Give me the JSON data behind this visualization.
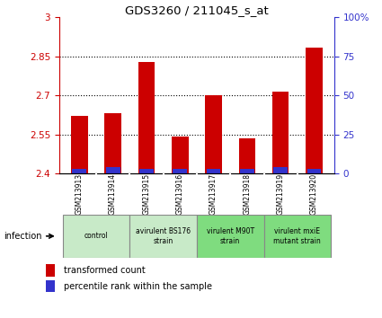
{
  "title": "GDS3260 / 211045_s_at",
  "samples": [
    "GSM213913",
    "GSM213914",
    "GSM213915",
    "GSM213916",
    "GSM213917",
    "GSM213918",
    "GSM213919",
    "GSM213920"
  ],
  "transformed_count": [
    2.62,
    2.63,
    2.83,
    2.54,
    2.7,
    2.535,
    2.715,
    2.885
  ],
  "percentile_rank": [
    3,
    4,
    3,
    3,
    3,
    3,
    4,
    3
  ],
  "ylim_left": [
    2.4,
    3.0
  ],
  "ylim_right": [
    0,
    100
  ],
  "yticks_left": [
    2.4,
    2.55,
    2.7,
    2.85,
    3.0
  ],
  "yticks_right": [
    0,
    25,
    50,
    75,
    100
  ],
  "ytick_labels_left": [
    "2.4",
    "2.55",
    "2.7",
    "2.85",
    "3"
  ],
  "ytick_labels_right": [
    "0",
    "25",
    "50",
    "75",
    "100%"
  ],
  "bar_color_red": "#cc0000",
  "bar_color_blue": "#3333cc",
  "base": 2.4,
  "bar_width": 0.5,
  "groups": [
    {
      "label": "control",
      "indices": [
        0,
        1
      ],
      "color": "#c8eac8"
    },
    {
      "label": "avirulent BS176\nstrain",
      "indices": [
        2,
        3
      ],
      "color": "#c8eac8"
    },
    {
      "label": "virulent M90T\nstrain",
      "indices": [
        4,
        5
      ],
      "color": "#7fdc7f"
    },
    {
      "label": "virulent mxiE\nmutant strain",
      "indices": [
        6,
        7
      ],
      "color": "#7fdc7f"
    }
  ],
  "infection_label": "infection",
  "legend_red": "transformed count",
  "legend_blue": "percentile rank within the sample",
  "background_color": "#ffffff",
  "plot_bg": "#ffffff",
  "tick_label_area_color": "#c8c8c8",
  "group_border_color": "#888888"
}
